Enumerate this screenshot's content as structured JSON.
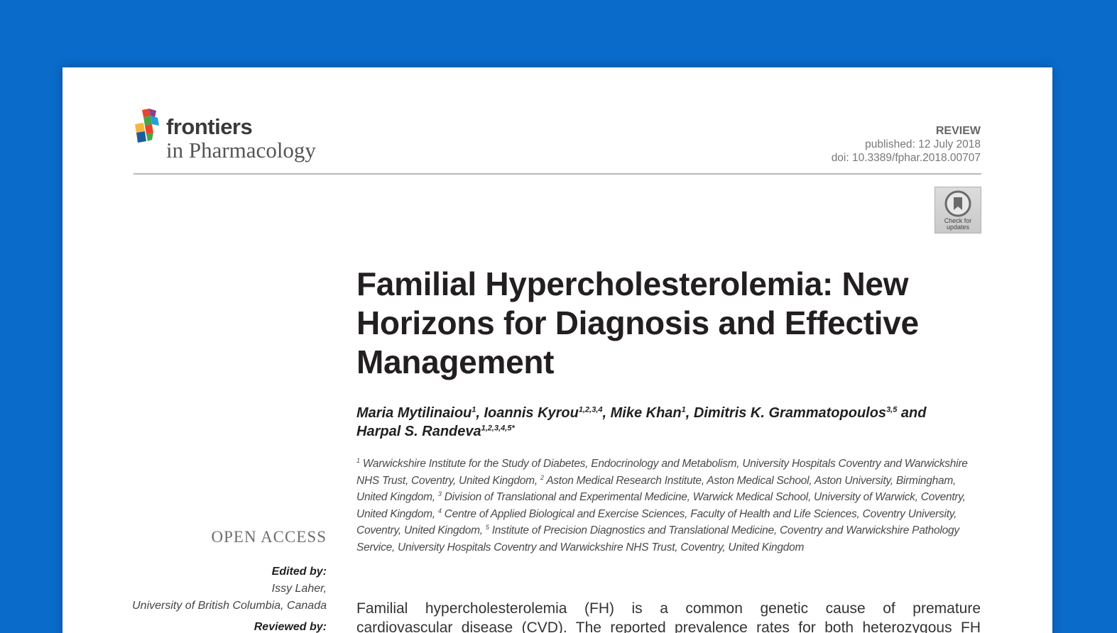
{
  "journal": {
    "logo_line1": "frontiers",
    "logo_line2": "in Pharmacology",
    "logo_colors": [
      "#e8452c",
      "#1ea2d9",
      "#f6b63c",
      "#4aa349",
      "#8a3f8f",
      "#1c5c9e"
    ]
  },
  "article_meta": {
    "type": "REVIEW",
    "published": "published: 12 July 2018",
    "doi": "doi: 10.3389/fphar.2018.00707"
  },
  "check_updates": {
    "label": "Check for\nupdates",
    "icon": "bookmark-icon"
  },
  "title": "Familial Hypercholesterolemia: New Horizons for Diagnosis and Effective Management",
  "authors": [
    {
      "name": "Maria Mytilinaiou",
      "sup": "1",
      "sep": ", "
    },
    {
      "name": "Ioannis Kyrou",
      "sup": "1,2,3,4",
      "sep": ", "
    },
    {
      "name": "Mike Khan",
      "sup": "1",
      "sep": ", "
    },
    {
      "name": "Dimitris K. Grammatopoulos",
      "sup": "3,5",
      "sep": " and "
    },
    {
      "name": "Harpal S. Randeva",
      "sup": "1,2,3,4,5*",
      "sep": ""
    }
  ],
  "affiliations": [
    {
      "sup": "1",
      "text": "Warwickshire Institute for the Study of Diabetes, Endocrinology and Metabolism, University Hospitals Coventry and Warwickshire NHS Trust, Coventry, United Kingdom, "
    },
    {
      "sup": "2",
      "text": "Aston Medical Research Institute, Aston Medical School, Aston University, Birmingham, United Kingdom, "
    },
    {
      "sup": "3",
      "text": "Division of Translational and Experimental Medicine, Warwick Medical School, University of Warwick, Coventry, United Kingdom, "
    },
    {
      "sup": "4",
      "text": "Centre of Applied Biological and Exercise Sciences, Faculty of Health and Life Sciences, Coventry University, Coventry, United Kingdom, "
    },
    {
      "sup": "5",
      "text": "Institute of Precision Diagnostics and Translational Medicine, Coventry and Warwickshire Pathology Service, University Hospitals Coventry and Warwickshire NHS Trust, Coventry, United Kingdom"
    }
  ],
  "sidebar": {
    "open_access": "OPEN ACCESS",
    "edited_by_label": "Edited by:",
    "editor_name": "Issy Laher,",
    "editor_affiliation": "University of British Columbia, Canada",
    "reviewed_by_label": "Reviewed by:"
  },
  "abstract": {
    "line1": "Familial hypercholesterolemia (FH) is a common genetic cause of premature",
    "line2": "cardiovascular disease (CVD). The reported prevalence rates for both heterozygous FH"
  }
}
